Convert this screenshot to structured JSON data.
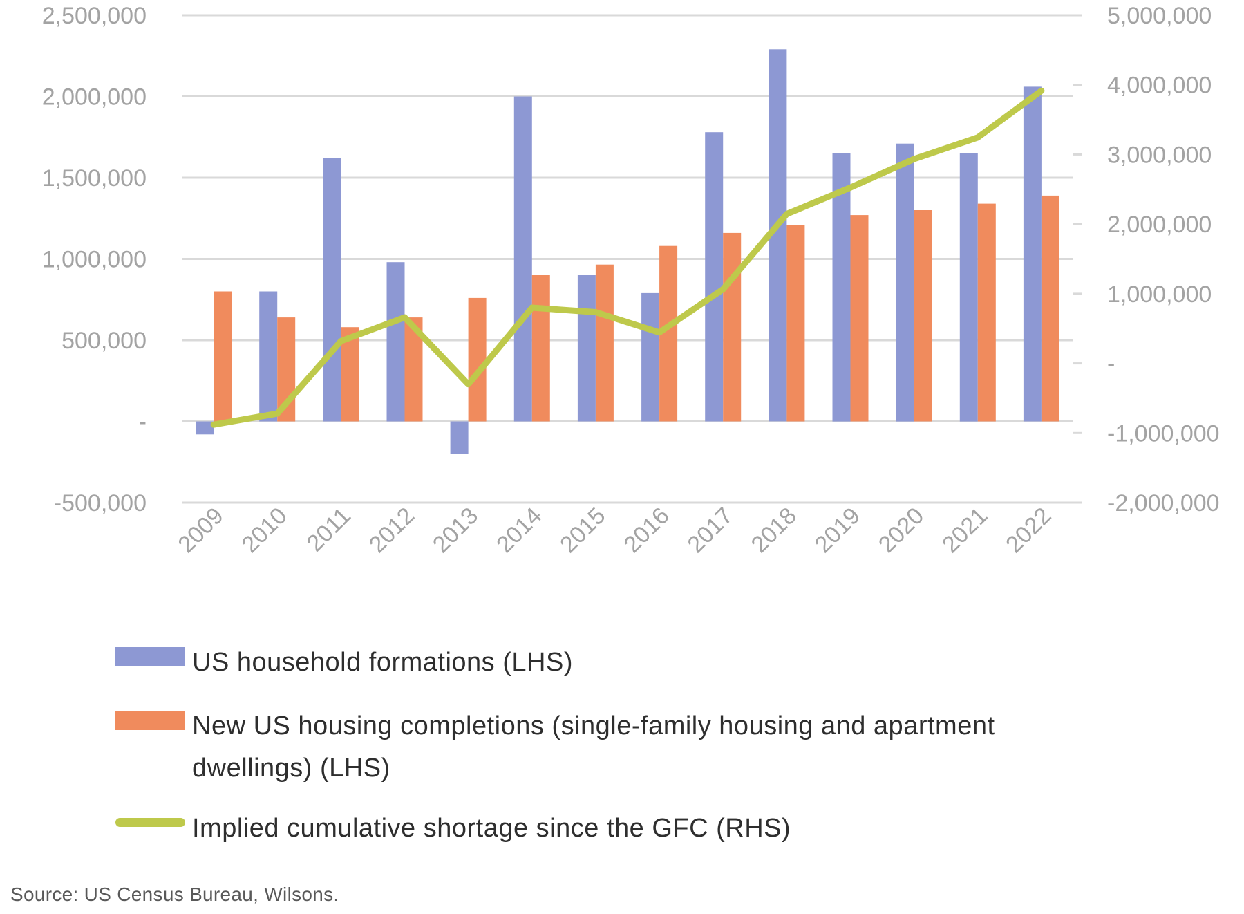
{
  "chart_data": {
    "type": "bar",
    "subtype": "grouped-bars-with-line-dual-axis",
    "categories": [
      "2009",
      "2010",
      "2011",
      "2012",
      "2013",
      "2014",
      "2015",
      "2016",
      "2017",
      "2018",
      "2019",
      "2020",
      "2021",
      "2022"
    ],
    "series": [
      {
        "key": "formations",
        "name": "US household formations (LHS)",
        "type": "bar",
        "axis": "left",
        "color": "#8d98d3",
        "values": [
          -80000,
          800000,
          1620000,
          980000,
          -200000,
          2000000,
          900000,
          790000,
          1780000,
          2290000,
          1650000,
          1710000,
          1650000,
          2060000
        ]
      },
      {
        "key": "completions",
        "name": "New US housing completions (single-family housing and apartment dwellings) (LHS)",
        "type": "bar",
        "axis": "left",
        "color": "#f08b5d",
        "values": [
          800000,
          640000,
          580000,
          640000,
          760000,
          900000,
          965000,
          1080000,
          1160000,
          1210000,
          1270000,
          1300000,
          1340000,
          1390000
        ]
      },
      {
        "key": "shortage",
        "name": "Implied cumulative shortage since the GFC (RHS)",
        "type": "line",
        "axis": "right",
        "color": "#bec94b",
        "values": [
          -880000,
          -720000,
          320000,
          660000,
          -300000,
          800000,
          735000,
          445000,
          1065000,
          2145000,
          2525000,
          2935000,
          3245000,
          3915000
        ]
      }
    ],
    "left_axis": {
      "min": -500000,
      "max": 2500000,
      "tick_values": [
        2500000,
        2000000,
        1500000,
        1000000,
        500000,
        0,
        -500000
      ],
      "tick_labels": [
        "2,500,000",
        "2,000,000",
        "1,500,000",
        "1,000,000",
        "500,000",
        "-",
        "-500,000"
      ]
    },
    "right_axis": {
      "min": -2000000,
      "max": 5000000,
      "tick_values": [
        5000000,
        4000000,
        3000000,
        2000000,
        1000000,
        0,
        -1000000,
        -2000000
      ],
      "tick_labels": [
        "5,000,000",
        "4,000,000",
        "3,000,000",
        "2,000,000",
        "1,000,000",
        "-",
        "-1,000,000",
        "-2,000,000"
      ]
    },
    "grid": true,
    "grid_color": "#d9d9d9",
    "axis_text_color": "#a3a3a3",
    "legend_position": "bottom-left"
  },
  "source_text": "Source: US Census Bureau, Wilsons."
}
